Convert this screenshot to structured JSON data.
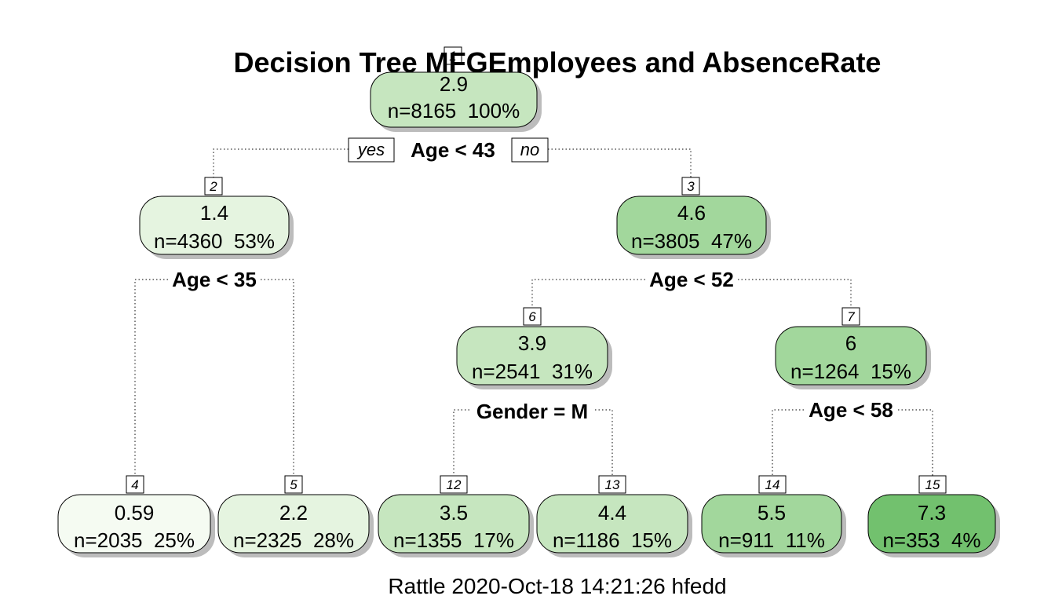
{
  "title": "Decision Tree MFGEmployees and AbsenceRate",
  "caption": "Rattle 2020-Oct-18 14:21:26 hfedd",
  "branch_labels": {
    "yes": "yes",
    "no": "no"
  },
  "splits": {
    "s1": "Age < 43",
    "s2": "Age < 35",
    "s3": "Age < 52",
    "s6": "Gender = M",
    "s7": "Age < 58"
  },
  "nodes": {
    "n1": {
      "id": "1",
      "value": "2.9",
      "stats": "n=8165  100%",
      "color": "#c6e6bf"
    },
    "n2": {
      "id": "2",
      "value": "1.4",
      "stats": "n=4360  53%",
      "color": "#e5f4e0"
    },
    "n3": {
      "id": "3",
      "value": "4.6",
      "stats": "n=3805  47%",
      "color": "#a2d79c"
    },
    "n4": {
      "id": "4",
      "value": "0.59",
      "stats": "n=2035  25%",
      "color": "#f5fbf2"
    },
    "n5": {
      "id": "5",
      "value": "2.2",
      "stats": "n=2325  28%",
      "color": "#e5f4e0"
    },
    "n6": {
      "id": "6",
      "value": "3.9",
      "stats": "n=2541  31%",
      "color": "#c6e6bf"
    },
    "n7": {
      "id": "7",
      "value": "6",
      "stats": "n=1264  15%",
      "color": "#a2d79c"
    },
    "n12": {
      "id": "12",
      "value": "3.5",
      "stats": "n=1355  17%",
      "color": "#c6e6bf"
    },
    "n13": {
      "id": "13",
      "value": "4.4",
      "stats": "n=1186  15%",
      "color": "#c6e6bf"
    },
    "n14": {
      "id": "14",
      "value": "5.5",
      "stats": "n=911  11%",
      "color": "#a2d79c"
    },
    "n15": {
      "id": "15",
      "value": "7.3",
      "stats": "n=353  4%",
      "color": "#72c16e"
    }
  }
}
